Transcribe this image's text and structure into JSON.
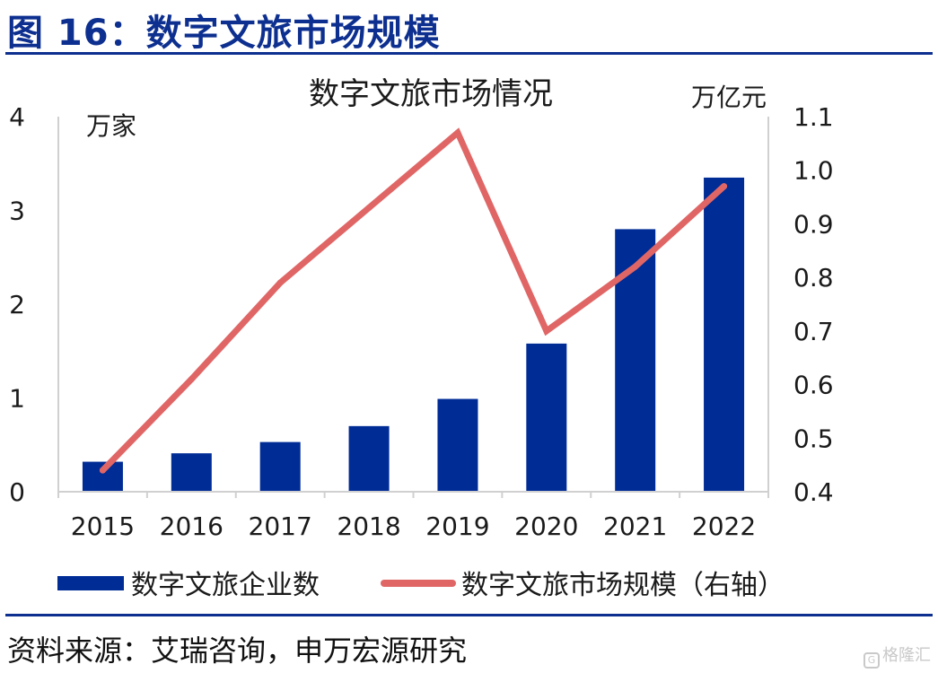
{
  "figure": {
    "title": "图 16：数字文旅市场规模",
    "source": "资料来源：艾瑞咨询，申万宏源研究",
    "watermark": "格隆汇"
  },
  "colors": {
    "brand": "#0d2f8f",
    "bar": "#002c96",
    "line": "#e06666"
  },
  "chart_data": {
    "type": "bar",
    "title": "数字文旅市场情况",
    "categories": [
      "2015",
      "2016",
      "2017",
      "2018",
      "2019",
      "2020",
      "2021",
      "2022"
    ],
    "series": [
      {
        "name": "数字文旅企业数",
        "type": "bar",
        "axis": "left",
        "values": [
          0.32,
          0.41,
          0.53,
          0.7,
          0.99,
          1.58,
          2.8,
          3.35
        ]
      },
      {
        "name": "数字文旅市场规模（右轴）",
        "type": "line",
        "axis": "right",
        "values": [
          0.44,
          0.61,
          0.79,
          0.93,
          1.07,
          0.7,
          0.82,
          0.97
        ]
      }
    ],
    "y_left": {
      "unit": "万家",
      "lim": [
        0,
        4
      ],
      "ticks": [
        0,
        1,
        2,
        3,
        4
      ]
    },
    "y_right": {
      "unit": "万亿元",
      "lim": [
        0.4,
        1.1
      ],
      "ticks": [
        "0.4",
        "0.5",
        "0.6",
        "0.7",
        "0.8",
        "0.9",
        "1.0",
        "1.1"
      ]
    },
    "grid": false,
    "legend": "bottom"
  }
}
